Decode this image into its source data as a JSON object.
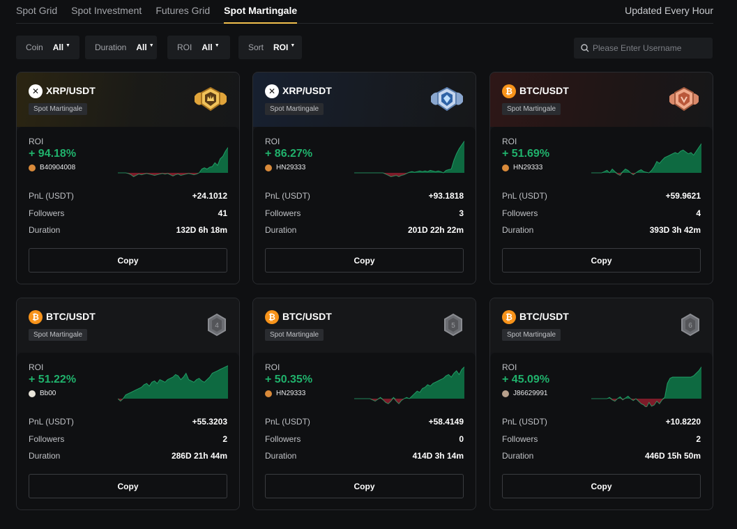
{
  "tabs": [
    {
      "label": "Spot Grid"
    },
    {
      "label": "Spot Investment"
    },
    {
      "label": "Futures Grid"
    },
    {
      "label": "Spot Martingale"
    }
  ],
  "active_tab": "Spot Martingale",
  "updated_text": "Updated Every Hour",
  "filters": {
    "coin": {
      "label": "Coin",
      "value": "All"
    },
    "duration": {
      "label": "Duration",
      "value": "All"
    },
    "roi": {
      "label": "ROI",
      "value": "All"
    },
    "sort": {
      "label": "Sort",
      "value": "ROI"
    }
  },
  "search": {
    "placeholder": "Please Enter Username",
    "icon": "search-icon"
  },
  "labels": {
    "roi": "ROI",
    "pnl": "PnL (USDT)",
    "followers": "Followers",
    "duration": "Duration",
    "copy": "Copy"
  },
  "cards": [
    {
      "pair": "XRP/USDT",
      "coin": "xrp",
      "tag": "Spot Martingale",
      "rank_badge": "gold-crown-badge",
      "roi": "+ 94.18%",
      "user": "B40904008",
      "pnl": "+24.1012",
      "followers": "41",
      "duration": "132D 6h 18m"
    },
    {
      "pair": "XRP/USDT",
      "coin": "xrp",
      "tag": "Spot Martingale",
      "rank_badge": "silver-diamond-badge",
      "roi": "+ 86.27%",
      "user": "HN29333",
      "pnl": "+93.1818",
      "followers": "3",
      "duration": "201D 22h 22m"
    },
    {
      "pair": "BTC/USDT",
      "coin": "btc",
      "tag": "Spot Martingale",
      "rank_badge": "bronze-badge",
      "roi": "+ 51.69%",
      "user": "HN29333",
      "pnl": "+59.9621",
      "followers": "4",
      "duration": "393D 3h 42m"
    },
    {
      "pair": "BTC/USDT",
      "coin": "btc",
      "tag": "Spot Martingale",
      "rank": "4",
      "roi": "+ 51.22%",
      "user": "Bb00",
      "pnl": "+55.3203",
      "followers": "2",
      "duration": "286D 21h 44m"
    },
    {
      "pair": "BTC/USDT",
      "coin": "btc",
      "tag": "Spot Martingale",
      "rank": "5",
      "roi": "+ 50.35%",
      "user": "HN29333",
      "pnl": "+58.4149",
      "followers": "0",
      "duration": "414D 3h 14m"
    },
    {
      "pair": "BTC/USDT",
      "coin": "btc",
      "tag": "Spot Martingale",
      "rank": "6",
      "roi": "+ 45.09%",
      "user": "J86629991",
      "pnl": "+10.8220",
      "followers": "2",
      "duration": "446D 15h 50m"
    }
  ],
  "colors": {
    "accent": "#f2c04e",
    "positive": "#20b26c",
    "negative": "#b3263a",
    "btc": "#f7931a"
  }
}
